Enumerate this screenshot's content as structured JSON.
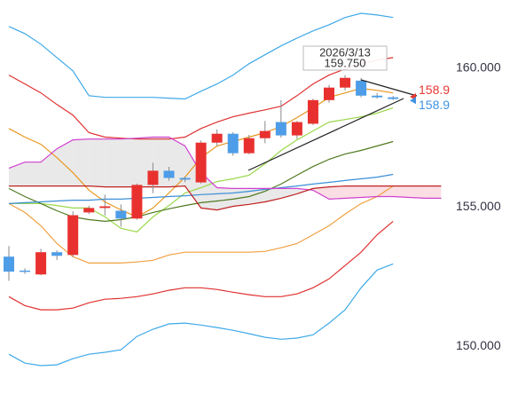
{
  "chart_data": {
    "type": "candlestick",
    "categories": [
      null,
      null,
      null,
      null,
      null,
      null,
      null,
      null,
      null,
      null,
      null,
      null,
      null,
      null,
      null,
      null,
      null,
      null,
      null,
      null,
      null,
      null,
      null,
      null,
      null,
      null,
      null,
      null
    ],
    "open": [
      153.22,
      152.72,
      152.58,
      153.38,
      153.28,
      154.81,
      154.97,
      154.87,
      154.59,
      155.8,
      156.31,
      156.05,
      155.89,
      157.32,
      157.64,
      156.94,
      157.48,
      158.06,
      157.58,
      158.0,
      158.85,
      159.3,
      159.55,
      159.01,
      158.95,
      null,
      null,
      null
    ],
    "high": [
      153.6,
      152.8,
      153.5,
      153.45,
      154.85,
      155.05,
      155.45,
      155.1,
      155.85,
      156.6,
      156.45,
      156.1,
      157.4,
      157.8,
      157.7,
      157.6,
      158.1,
      158.85,
      158.1,
      158.9,
      159.4,
      159.75,
      159.65,
      159.1,
      159.0,
      null,
      null,
      null
    ],
    "low": [
      152.35,
      152.6,
      152.55,
      153.1,
      153.2,
      154.75,
      154.7,
      154.3,
      154.55,
      155.5,
      155.95,
      155.9,
      155.85,
      157.2,
      156.85,
      156.9,
      157.3,
      157.5,
      157.45,
      157.95,
      158.75,
      159.2,
      158.95,
      158.9,
      158.85,
      null,
      null,
      null
    ],
    "close": [
      152.68,
      152.68,
      153.38,
      153.25,
      154.71,
      154.97,
      155.03,
      154.59,
      155.8,
      156.31,
      156.05,
      155.99,
      157.32,
      157.64,
      156.94,
      157.48,
      157.74,
      157.58,
      158.06,
      158.85,
      159.3,
      159.65,
      159.01,
      158.95,
      158.89,
      null,
      null,
      null
    ],
    "up_color": "#e8312f",
    "down_color": "#4d9de8",
    "series": [
      {
        "color": "#3fa9e8",
        "values": [
          161.5,
          161.24,
          160.86,
          160.38,
          159.9,
          159.01,
          158.95,
          158.95,
          158.95,
          158.95,
          158.92,
          158.89,
          159.17,
          159.43,
          159.75,
          160.16,
          160.48,
          160.8,
          161.08,
          161.34,
          161.56,
          161.82,
          161.97,
          161.91,
          161.82,
          null,
          null,
          null
        ]
      },
      {
        "color": "#e03030",
        "values": [
          159.75,
          159.43,
          159.11,
          158.69,
          158.31,
          157.68,
          157.52,
          157.48,
          157.45,
          157.45,
          157.45,
          157.52,
          157.83,
          158.06,
          158.25,
          158.38,
          158.5,
          158.63,
          159.01,
          159.43,
          159.75,
          159.97,
          160.16,
          160.29,
          160.38,
          null,
          null,
          null
        ]
      },
      {
        "color": "#e03030",
        "values": [
          151.78,
          151.46,
          151.31,
          151.31,
          151.37,
          151.56,
          151.69,
          151.72,
          151.78,
          151.88,
          152.01,
          152.1,
          152.1,
          152.04,
          151.94,
          151.85,
          151.78,
          151.78,
          151.88,
          152.1,
          152.42,
          152.9,
          153.38,
          154.01,
          154.49,
          null,
          null,
          null
        ]
      },
      {
        "color": "#3fa9e8",
        "values": [
          149.71,
          149.39,
          149.3,
          149.33,
          149.55,
          149.71,
          149.78,
          149.87,
          150.35,
          150.61,
          150.8,
          150.83,
          150.76,
          150.67,
          150.57,
          150.45,
          150.32,
          150.25,
          150.29,
          150.41,
          150.83,
          151.31,
          152.1,
          152.74,
          152.96,
          null,
          null,
          null
        ]
      },
      {
        "color": "#e8961e",
        "values": [
          157.83,
          157.52,
          157.26,
          156.78,
          156.24,
          155.61,
          155.19,
          154.9,
          154.65,
          154.97,
          155.51,
          156.08,
          156.78,
          157.2,
          157.36,
          157.52,
          157.68,
          157.9,
          158.22,
          158.57,
          158.95,
          159.11,
          159.27,
          159.2,
          159.11,
          null,
          null,
          null
        ]
      },
      {
        "color": "#f0a040",
        "values": [
          155.13,
          154.81,
          154.33,
          153.69,
          153.22,
          152.99,
          152.99,
          152.99,
          153.03,
          153.09,
          153.28,
          153.38,
          153.38,
          153.38,
          153.38,
          153.38,
          153.41,
          153.54,
          153.69,
          154.01,
          154.33,
          154.75,
          155.13,
          155.38,
          155.76,
          null,
          null,
          null
        ]
      },
      {
        "color": "#9ad84a",
        "values": [
          155.13,
          155.13,
          155.13,
          155.06,
          154.97,
          154.97,
          154.65,
          154.24,
          154.11,
          154.65,
          155.06,
          155.51,
          155.7,
          155.92,
          156.02,
          156.15,
          156.56,
          157.04,
          157.42,
          157.74,
          158.06,
          158.15,
          158.25,
          158.38,
          158.57,
          null,
          null,
          null
        ]
      },
      {
        "color": "#4f7a1f",
        "values": [
          155.67,
          155.38,
          155.13,
          154.87,
          154.65,
          154.55,
          154.49,
          154.55,
          154.65,
          154.81,
          154.94,
          155.06,
          155.16,
          155.22,
          155.29,
          155.38,
          155.57,
          155.83,
          156.15,
          156.46,
          156.72,
          156.91,
          157.04,
          157.2,
          157.36,
          null,
          null,
          null
        ]
      },
      {
        "color": "#3a8fd8",
        "values": [
          155.13,
          155.16,
          155.19,
          155.22,
          155.25,
          155.25,
          155.29,
          155.29,
          155.32,
          155.35,
          155.38,
          155.41,
          155.45,
          155.48,
          155.51,
          155.57,
          155.64,
          155.7,
          155.76,
          155.83,
          155.89,
          155.96,
          156.02,
          156.08,
          156.18,
          null,
          null,
          null
        ]
      },
      {
        "color": "#d040d0",
        "values": [
          156.4,
          156.62,
          156.62,
          157.1,
          157.42,
          157.45,
          157.45,
          157.45,
          157.48,
          157.52,
          157.52,
          157.2,
          156.24,
          155.7,
          155.67,
          155.67,
          155.67,
          155.67,
          155.67,
          155.61,
          155.29,
          155.32,
          155.35,
          155.38,
          155.38,
          155.35,
          155.32,
          155.32
        ]
      },
      {
        "color": "#c02020",
        "values": [
          155.76,
          155.76,
          155.76,
          155.76,
          155.76,
          155.76,
          155.73,
          155.73,
          155.73,
          155.73,
          155.73,
          155.76,
          154.97,
          154.9,
          155.03,
          155.1,
          155.19,
          155.32,
          155.48,
          155.67,
          155.73,
          155.76,
          155.76,
          155.76,
          155.76,
          155.76,
          155.76,
          155.76
        ]
      }
    ],
    "cloud_colors": [
      "#e4e4e4",
      "#f9d6dc"
    ],
    "ylim": [
      148.28,
      162.45
    ],
    "yticks": [
      {
        "value": 150,
        "label": "150.000"
      },
      {
        "value": 155,
        "label": "155.000"
      },
      {
        "value": 160,
        "label": "160.000"
      }
    ],
    "tooltip": {
      "date": "2026/3/13",
      "value": "159.750"
    },
    "price_labels": [
      {
        "value": 158.9,
        "label": "158.9",
        "color": "#e53935"
      },
      {
        "value": 158.9,
        "label": "158.9",
        "color": "#3f93e0"
      }
    ]
  }
}
